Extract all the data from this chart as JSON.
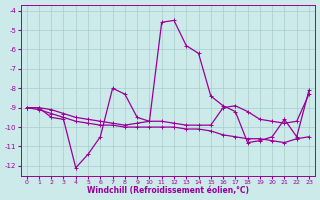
{
  "xlabel": "Windchill (Refroidissement éolien,°C)",
  "xlim": [
    -0.5,
    23.5
  ],
  "ylim": [
    -12.5,
    -3.7
  ],
  "yticks": [
    -12,
    -11,
    -10,
    -9,
    -8,
    -7,
    -6,
    -5,
    -4
  ],
  "xticks": [
    0,
    1,
    2,
    3,
    4,
    5,
    6,
    7,
    8,
    9,
    10,
    11,
    12,
    13,
    14,
    15,
    16,
    17,
    18,
    19,
    20,
    21,
    22,
    23
  ],
  "bg_color": "#cceaea",
  "line_color": "#990099",
  "grid_color": "#aacccc",
  "line1_y": [
    -9.0,
    -9.0,
    -9.5,
    -9.6,
    -12.1,
    -11.4,
    -10.5,
    -8.0,
    -8.3,
    -9.5,
    -9.7,
    -4.6,
    -4.5,
    -5.8,
    -6.2,
    -8.4,
    -8.9,
    -9.2,
    -10.8,
    -10.7,
    -10.5,
    -9.6,
    -10.5,
    -8.1
  ],
  "line2_y": [
    -9.0,
    -9.0,
    -9.1,
    -9.3,
    -9.5,
    -9.6,
    -9.7,
    -9.8,
    -9.9,
    -9.8,
    -9.7,
    -9.7,
    -9.8,
    -9.9,
    -9.9,
    -9.9,
    -9.0,
    -8.9,
    -9.2,
    -9.6,
    -9.7,
    -9.8,
    -9.7,
    -8.3
  ],
  "line3_y": [
    -9.0,
    -9.1,
    -9.3,
    -9.5,
    -9.7,
    -9.8,
    -9.9,
    -9.9,
    -10.0,
    -10.0,
    -10.0,
    -10.0,
    -10.0,
    -10.1,
    -10.1,
    -10.2,
    -10.4,
    -10.5,
    -10.6,
    -10.6,
    -10.7,
    -10.8,
    -10.6,
    -10.5
  ]
}
